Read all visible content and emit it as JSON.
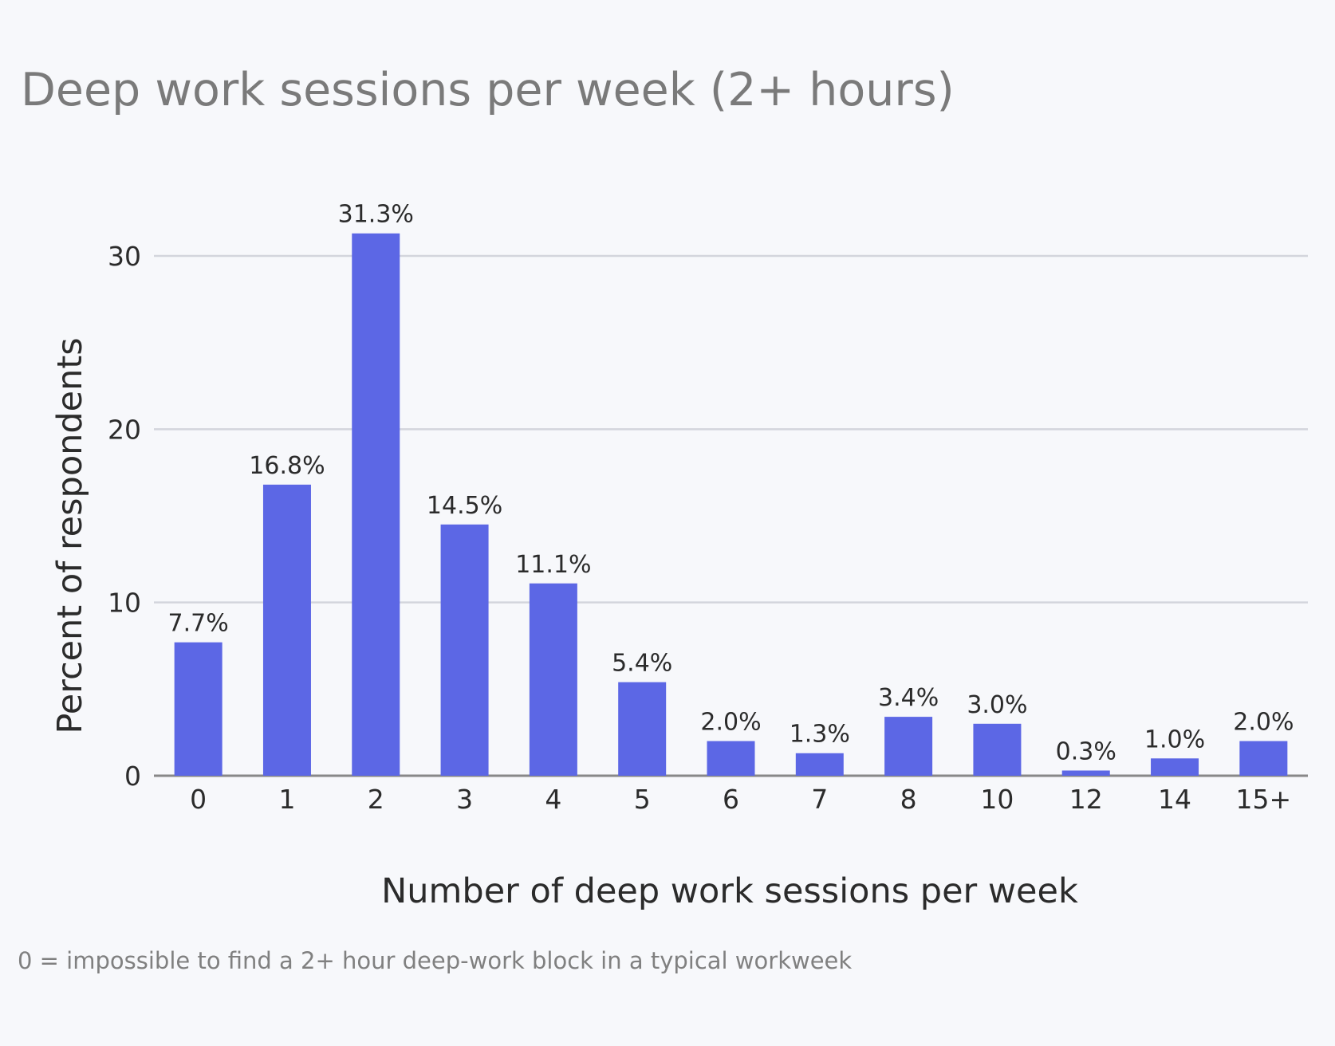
{
  "chart_data": {
    "type": "bar",
    "title": "Deep work sessions per week (2+ hours)",
    "xlabel": "Number of deep work sessions per week",
    "ylabel": "Percent of respondents",
    "categories": [
      "0",
      "1",
      "2",
      "3",
      "4",
      "5",
      "6",
      "7",
      "8",
      "10",
      "12",
      "14",
      "15+"
    ],
    "values": [
      7.7,
      16.8,
      31.3,
      14.5,
      11.1,
      5.4,
      2.0,
      1.3,
      3.4,
      3.0,
      0.3,
      1.0,
      2.0
    ],
    "data_labels": [
      "7.7%",
      "16.8%",
      "31.3%",
      "14.5%",
      "11.1%",
      "5.4%",
      "2.0%",
      "1.3%",
      "3.4%",
      "3.0%",
      "0.3%",
      "1.0%",
      "2.0%"
    ],
    "yticks": [
      0,
      10,
      20,
      30
    ],
    "ylim": [
      0,
      33
    ],
    "grid": true,
    "legend": "none",
    "footnote": "0 = impossible to find a 2+ hour deep-work block in a typical workweek",
    "colors": {
      "bar": "#5c67e5",
      "grid": "#d3d5dc",
      "axis": "#888888",
      "text": "#2b2b2b",
      "title": "#7a7a7a",
      "background": "#f7f8fb"
    }
  }
}
